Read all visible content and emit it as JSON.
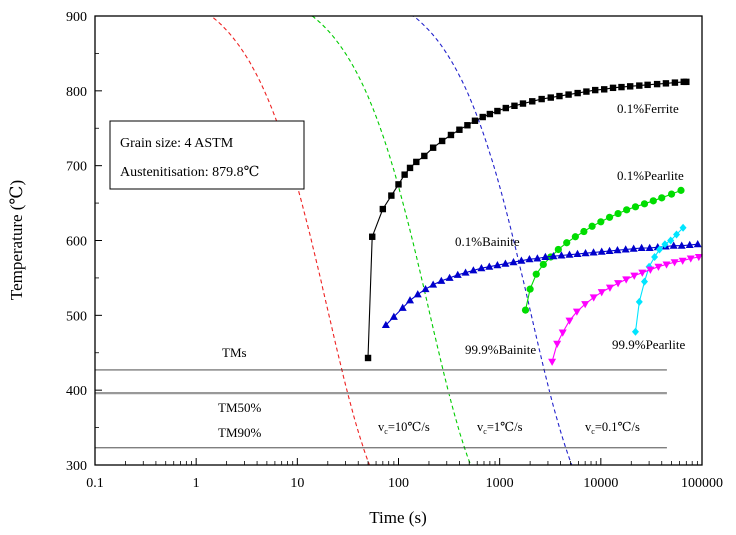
{
  "chart_data": {
    "type": "line",
    "xscale": "log",
    "xlim": [
      0.1,
      100000
    ],
    "ylim": [
      300,
      900
    ],
    "xlabel": "Time (s)",
    "ylabel": "Temperature (℃)",
    "xticks": [
      0.1,
      1,
      10,
      100,
      1000,
      10000,
      100000
    ],
    "xtick_labels": [
      "0.1",
      "1",
      "10",
      "100",
      "1000",
      "10000",
      "100000"
    ],
    "yticks": [
      300,
      400,
      500,
      600,
      700,
      800,
      900
    ],
    "ytick_labels": [
      "300",
      "400",
      "500",
      "600",
      "700",
      "800",
      "900"
    ],
    "grid": false,
    "info_box": {
      "line1": "Grain size: 4 ASTM",
      "line2": "Austenitisation: 879.8℃"
    },
    "series": [
      {
        "name": "0.1%Ferrite",
        "color": "#000000",
        "marker": "square",
        "x": [
          50,
          55,
          70,
          85,
          100,
          115,
          130,
          150,
          180,
          220,
          270,
          330,
          400,
          480,
          570,
          680,
          800,
          950,
          1150,
          1400,
          1700,
          2100,
          2600,
          3200,
          3900,
          4800,
          5900,
          7200,
          8800,
          10800,
          13200,
          16000,
          19500,
          24000,
          29000,
          36000,
          44000,
          54000,
          66000,
          70000
        ],
        "y": [
          443,
          605,
          642,
          660,
          675,
          688,
          697,
          705,
          713,
          724,
          733,
          741,
          748,
          754,
          760,
          765,
          769,
          773,
          777,
          780,
          783,
          786,
          789,
          791,
          793,
          795,
          797,
          799,
          801,
          802,
          804,
          805,
          806,
          807,
          808,
          809,
          810,
          811,
          812,
          812
        ]
      },
      {
        "name": "0.1%Pearlite",
        "color": "#00dd00",
        "marker": "circle",
        "x": [
          1800,
          2000,
          2300,
          2700,
          3200,
          3800,
          4600,
          5600,
          6800,
          8200,
          10000,
          12200,
          14800,
          18000,
          22000,
          27000,
          33000,
          40000,
          50000,
          62000
        ],
        "y": [
          507,
          535,
          555,
          568,
          578,
          588,
          597,
          605,
          612,
          619,
          625,
          631,
          636,
          641,
          645,
          649,
          653,
          657,
          662,
          667
        ]
      },
      {
        "name": "0.1%Bainite",
        "color": "#0000cc",
        "marker": "triangle-up",
        "x": [
          75,
          90,
          110,
          130,
          155,
          185,
          220,
          265,
          320,
          385,
          460,
          550,
          660,
          790,
          950,
          1140,
          1370,
          1640,
          1970,
          2360,
          2830,
          3400,
          4080,
          4900,
          5880,
          7060,
          8470,
          10200,
          12200,
          14600,
          17600,
          21100,
          25300,
          30400,
          36500,
          43800,
          52500,
          63000,
          75600,
          90700
        ],
        "y": [
          487,
          498,
          510,
          520,
          528,
          535,
          541,
          546,
          550,
          554,
          557,
          560,
          563,
          565,
          567,
          569,
          571,
          573,
          575,
          576,
          578,
          579,
          580,
          581,
          582,
          583,
          584,
          585,
          586,
          587,
          588,
          589,
          590,
          590,
          591,
          592,
          593,
          593,
          594,
          595
        ]
      },
      {
        "name": "99.9%Pearlite",
        "color": "#00e5ff",
        "marker": "diamond",
        "x": [
          22000,
          24000,
          27000,
          30000,
          34000,
          38000,
          43000,
          49000,
          56000,
          65000
        ],
        "y": [
          478,
          518,
          545,
          565,
          578,
          588,
          595,
          600,
          608,
          617
        ]
      },
      {
        "name": "99.9%Bainite",
        "color": "#ff00ff",
        "marker": "triangle-down",
        "x": [
          3300,
          3700,
          4200,
          4900,
          5800,
          7000,
          8500,
          10200,
          12300,
          14800,
          17800,
          21400,
          25700,
          30900,
          37100,
          44600,
          53600,
          64400,
          77400,
          93000
        ],
        "y": [
          438,
          462,
          477,
          493,
          505,
          515,
          524,
          531,
          537,
          543,
          548,
          553,
          557,
          561,
          565,
          568,
          571,
          573,
          576,
          578
        ]
      }
    ],
    "cooling_curves": [
      {
        "label": "v",
        "sub": "c",
        "rate": "=10℃/s",
        "color": "#ee2222",
        "t_end": 60
      },
      {
        "label": "v",
        "sub": "c",
        "rate": "=1℃/s",
        "color": "#00cc00",
        "t_end": 600
      },
      {
        "label": "v",
        "sub": "c",
        "rate": "=0.1℃/s",
        "color": "#2222cc",
        "t_end": 6000
      }
    ],
    "horizontal_lines": [
      {
        "name": "TMs",
        "y": 427,
        "color": "#333333"
      },
      {
        "name": "",
        "y": 396,
        "color": "#999999"
      },
      {
        "name": "TM50%",
        "y": 396,
        "color": "#333333"
      },
      {
        "name": "TM90%",
        "y": 323,
        "color": "#333333"
      }
    ],
    "hline_x_end": 45000,
    "annotations": [
      {
        "text": "0.1%Ferrite",
        "series": "0.1%Ferrite"
      },
      {
        "text": "0.1%Pearlite",
        "series": "0.1%Pearlite"
      },
      {
        "text": "0.1%Bainite",
        "series": "0.1%Bainite"
      },
      {
        "text": "99.9%Bainite",
        "series": "99.9%Bainite"
      },
      {
        "text": "99.9%Pearlite",
        "series": "99.9%Pearlite"
      }
    ]
  }
}
